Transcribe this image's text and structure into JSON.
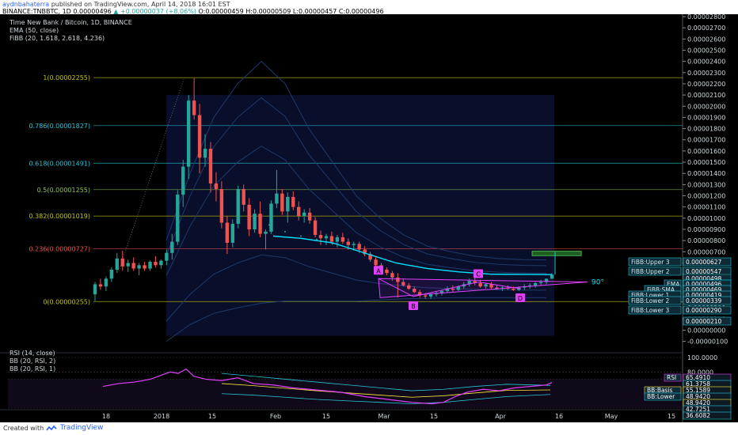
{
  "header": {
    "author": "aydnbahaterra",
    "published": "published on TradingView.com, April 14, 2018 16:01 EST",
    "symbol": "BINANCE:TNBBTC, 1D",
    "close_val": "0.00000496",
    "change": "▲ +0.00000037 (+8.06%)",
    "o_label": "O:",
    "o_val": "0.00000459",
    "h_label": "H:",
    "h_val": "0.00000509",
    "l_label": "L:",
    "l_val": "0.00000457",
    "c_label": "C:",
    "c_val": "0.00000496"
  },
  "legend": {
    "title": "Time New Bank / Bitcoin, 1D, BINANCE",
    "ema": "EMA (50, close)",
    "fibb": "FiBB (20, 1.618, 2.618, 4.236)"
  },
  "rsi_legend": {
    "rsi": "RSI (14, close)",
    "bb1": "BB (20, RSI, 2)",
    "bb2": "BB (20, RSI, 1)"
  },
  "footer": {
    "created": "Created with",
    "brand": "TradingView"
  },
  "colors": {
    "bull": "#26a69a",
    "bear": "#ef5350",
    "ema": "#00e5ff",
    "pattern": "#e040fb",
    "rsi": "#e040fb",
    "fib": "#4caf50"
  },
  "chart_data": {
    "type": "candlestick",
    "title": "Time New Bank / Bitcoin, 1D, BINANCE",
    "price_axis": {
      "ticks": [
        "0.00002800",
        "0.00002700",
        "0.00002600",
        "0.00002500",
        "0.00002400",
        "0.00002300",
        "0.00002200",
        "0.00002100",
        "0.00002000",
        "0.00001900",
        "0.00001800",
        "0.00001700",
        "0.00001600",
        "0.00001500",
        "0.00001400",
        "0.00001300",
        "0.00001200",
        "0.00001100",
        "0.00001000",
        "0.00000900",
        "0.00000800",
        "0.00000700",
        "0.00000600",
        "0.00000500",
        "0.00000400",
        "0.00000300",
        "0.00000200",
        "0.00000100",
        "0.00000000",
        "-0.00000100"
      ],
      "range": [
        -1e-06,
        2.8e-05
      ]
    },
    "time_axis": {
      "ticks": [
        "18",
        "2018",
        "15",
        "Feb",
        "15",
        "Mar",
        "15",
        "Apr",
        "16",
        "May",
        "15"
      ]
    },
    "fib_levels": [
      {
        "label": "1(0.00002255)",
        "value": 2.255e-05,
        "color": "#c6c600"
      },
      {
        "label": "0.786(0.00001827)",
        "value": 1.827e-05,
        "color": "#26c6da"
      },
      {
        "label": "0.618(0.00001491)",
        "value": 1.491e-05,
        "color": "#26c6da"
      },
      {
        "label": "0.5(0.00001255)",
        "value": 1.255e-05,
        "color": "#8bc34a"
      },
      {
        "label": "0.382(0.00001019)",
        "value": 1.019e-05,
        "color": "#c6c600"
      },
      {
        "label": "0.236(0.00000727)",
        "value": 7.27e-06,
        "color": "#ef5350"
      },
      {
        "label": "0(0.00000255)",
        "value": 2.55e-06,
        "color": "#c6c600"
      }
    ],
    "price_labels": [
      {
        "name": "FiBB:Upper 3",
        "value": "0.00000627",
        "color": "#26c6da"
      },
      {
        "name": "FiBB:Upper 2",
        "value": "0.00000547",
        "color": "#26c6da"
      },
      {
        "name": "",
        "value": "0.00000498",
        "color": "#26a69a"
      },
      {
        "name": "EMA",
        "value": "0.00000496",
        "color": "#00e5ff"
      },
      {
        "name": "FiBB:SMA",
        "value": "0.00000469",
        "color": "#26c6da"
      },
      {
        "name": "FiBB:Lower 1",
        "value": "0.00000419",
        "color": "#26c6da"
      },
      {
        "name": "FiBB:Lower 2",
        "value": "0.00000339",
        "color": "#26c6da"
      },
      {
        "name": "FiBB:Lower 3",
        "value": "0.00000290",
        "color": "#26c6da"
      },
      {
        "name": "",
        "value": "0.00000210",
        "color": "#26c6da"
      }
    ],
    "pattern_points": [
      "A",
      "B",
      "C",
      "D"
    ],
    "angle_label": "90°",
    "rsi": {
      "ticks": [
        "100.0000",
        "80.0000"
      ],
      "labels": [
        {
          "name": "RSI",
          "value": "65.4910",
          "color": "#e040fb"
        },
        {
          "name": "",
          "value": "61.3758",
          "color": "#26c6da"
        },
        {
          "name": "BB:Basis",
          "value": "55.1589",
          "color": "#ffeb3b"
        },
        {
          "name": "BB:Lower",
          "value": "48.9420",
          "color": "#26c6da"
        },
        {
          "name": "",
          "value": "48.9420",
          "color": "#ffeb3b"
        },
        {
          "name": "",
          "value": "42.7251",
          "color": "#26c6da"
        },
        {
          "name": "",
          "value": "36.6082",
          "color": "#26c6da"
        }
      ]
    },
    "candles": [
      [
        3.2,
        4.3,
        2.6,
        4.1
      ],
      [
        4.1,
        4.6,
        3.6,
        3.9
      ],
      [
        3.9,
        4.8,
        3.5,
        4.6
      ],
      [
        4.6,
        5.6,
        4.3,
        5.4
      ],
      [
        5.4,
        6.9,
        5.1,
        6.4
      ],
      [
        6.4,
        7.1,
        5.3,
        5.7
      ],
      [
        5.7,
        6.3,
        5.2,
        6.0
      ],
      [
        6.0,
        6.5,
        5.3,
        5.5
      ],
      [
        5.5,
        6.0,
        4.9,
        5.8
      ],
      [
        5.8,
        6.1,
        5.3,
        5.5
      ],
      [
        5.5,
        6.2,
        5.3,
        6.1
      ],
      [
        6.1,
        6.6,
        5.6,
        5.8
      ],
      [
        5.8,
        6.3,
        5.5,
        6.2
      ],
      [
        6.2,
        7.2,
        5.8,
        6.9
      ],
      [
        6.9,
        8.6,
        6.3,
        7.9
      ],
      [
        7.9,
        12.5,
        7.6,
        12.1
      ],
      [
        12.1,
        15.2,
        11.0,
        14.6
      ],
      [
        14.6,
        21.0,
        13.5,
        20.5
      ],
      [
        20.5,
        22.5,
        18.8,
        19.2
      ],
      [
        19.2,
        20.2,
        14.0,
        15.4
      ],
      [
        15.4,
        17.5,
        14.6,
        16.2
      ],
      [
        16.2,
        16.8,
        12.3,
        13.1
      ],
      [
        13.1,
        14.1,
        11.5,
        12.6
      ],
      [
        12.6,
        13.3,
        9.1,
        9.6
      ],
      [
        9.6,
        10.2,
        6.8,
        7.8
      ],
      [
        7.8,
        9.9,
        7.4,
        9.5
      ],
      [
        9.5,
        12.9,
        9.1,
        12.6
      ],
      [
        12.6,
        13.0,
        10.6,
        11.2
      ],
      [
        11.2,
        11.8,
        8.4,
        9.0
      ],
      [
        9.0,
        10.8,
        8.7,
        10.4
      ],
      [
        10.4,
        11.5,
        8.3,
        8.6
      ],
      [
        8.6,
        9.0,
        7.2,
        8.8
      ],
      [
        8.8,
        11.6,
        8.6,
        11.3
      ],
      [
        11.3,
        14.3,
        10.9,
        12.2
      ],
      [
        12.2,
        12.6,
        10.3,
        10.6
      ],
      [
        10.6,
        12.3,
        9.6,
        11.9
      ],
      [
        11.9,
        12.4,
        10.7,
        11.0
      ],
      [
        11.0,
        11.5,
        9.8,
        10.2
      ],
      [
        10.2,
        10.8,
        9.6,
        10.5
      ],
      [
        10.5,
        10.9,
        9.5,
        9.8
      ],
      [
        9.8,
        10.1,
        8.3,
        8.5
      ],
      [
        8.5,
        8.9,
        7.6,
        8.2
      ],
      [
        8.2,
        8.6,
        7.6,
        8.4
      ],
      [
        8.4,
        8.8,
        7.7,
        7.9
      ],
      [
        7.9,
        8.5,
        7.4,
        8.3
      ],
      [
        8.3,
        8.7,
        7.7,
        7.9
      ],
      [
        7.9,
        8.2,
        7.2,
        7.6
      ],
      [
        7.6,
        7.9,
        7.1,
        7.7
      ],
      [
        7.7,
        7.9,
        6.9,
        7.2
      ],
      [
        7.2,
        7.5,
        6.6,
        6.8
      ],
      [
        6.8,
        7.0,
        6.1,
        6.3
      ],
      [
        6.3,
        6.6,
        5.6,
        5.8
      ],
      [
        5.8,
        6.0,
        5.1,
        5.4
      ],
      [
        5.4,
        5.6,
        4.9,
        5.1
      ],
      [
        5.1,
        5.3,
        4.4,
        4.7
      ],
      [
        4.7,
        5.1,
        2.9,
        4.3
      ],
      [
        4.3,
        4.6,
        3.9,
        4.0
      ],
      [
        4.0,
        4.2,
        3.6,
        3.7
      ],
      [
        3.7,
        3.9,
        3.3,
        3.4
      ],
      [
        3.4,
        3.6,
        2.9,
        3.1
      ],
      [
        3.1,
        3.3,
        2.8,
        3.0
      ],
      [
        3.0,
        3.3,
        2.8,
        3.2
      ],
      [
        3.2,
        3.5,
        3.0,
        3.3
      ],
      [
        3.3,
        3.6,
        3.1,
        3.5
      ],
      [
        3.5,
        3.9,
        3.3,
        3.7
      ],
      [
        3.7,
        4.0,
        3.4,
        3.6
      ],
      [
        3.6,
        4.0,
        3.5,
        3.9
      ],
      [
        3.9,
        4.3,
        3.7,
        4.1
      ],
      [
        4.1,
        4.6,
        3.9,
        4.4
      ],
      [
        4.4,
        4.7,
        4.0,
        4.2
      ],
      [
        4.2,
        4.5,
        3.8,
        3.9
      ],
      [
        3.9,
        4.2,
        3.7,
        4.1
      ],
      [
        4.1,
        4.3,
        3.7,
        3.8
      ],
      [
        3.8,
        4.0,
        3.6,
        3.7
      ],
      [
        3.7,
        3.9,
        3.5,
        3.8
      ],
      [
        3.8,
        4.0,
        3.6,
        3.7
      ],
      [
        3.7,
        3.9,
        3.5,
        3.6
      ],
      [
        3.6,
        3.9,
        3.5,
        3.8
      ],
      [
        3.8,
        4.1,
        3.6,
        3.9
      ],
      [
        3.9,
        4.2,
        3.7,
        4.0
      ],
      [
        4.0,
        4.3,
        3.8,
        4.2
      ],
      [
        4.2,
        4.5,
        4.0,
        4.3
      ],
      [
        4.3,
        4.6,
        4.1,
        4.59
      ],
      [
        4.59,
        5.09,
        4.57,
        4.96
      ]
    ]
  }
}
